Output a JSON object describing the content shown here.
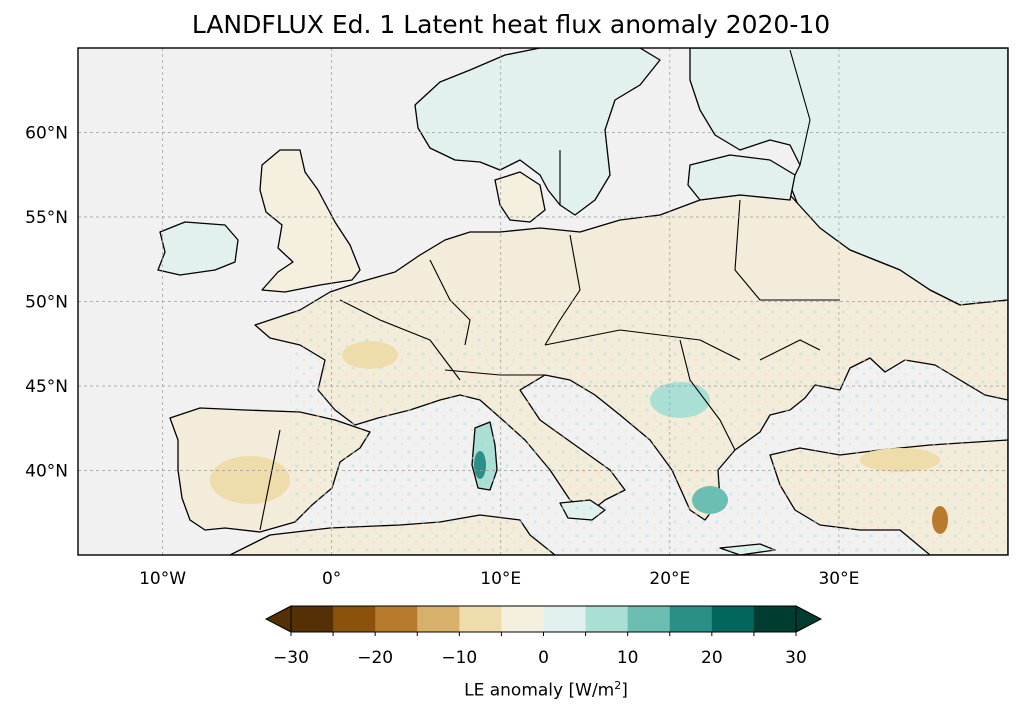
{
  "title": "LANDFLUX Ed. 1 Latent heat flux anomaly 2020-10",
  "map": {
    "projection": "PlateCarree",
    "lon_range": [
      -15,
      40
    ],
    "lat_range": [
      35,
      65
    ],
    "gridlines": true,
    "lon_ticks": [
      {
        "value": -10,
        "label": "10°W"
      },
      {
        "value": 0,
        "label": "0°"
      },
      {
        "value": 10,
        "label": "10°E"
      },
      {
        "value": 20,
        "label": "20°E"
      },
      {
        "value": 30,
        "label": "30°E"
      }
    ],
    "lat_ticks": [
      {
        "value": 60,
        "label": "60°N"
      },
      {
        "value": 55,
        "label": "55°N"
      },
      {
        "value": 50,
        "label": "50°N"
      },
      {
        "value": 45,
        "label": "45°N"
      },
      {
        "value": 40,
        "label": "40°N"
      }
    ],
    "ocean_color": "#f1f1f1",
    "coastline_color": "#000000"
  },
  "colorbar": {
    "label_main": "LE anomaly [W/m",
    "label_sup": "2",
    "label_end": "]",
    "extend": "both",
    "boundaries": [
      -30,
      -25,
      -20,
      -15,
      -10,
      -5,
      0,
      5,
      10,
      15,
      20,
      25,
      30
    ],
    "colors": [
      "#553005",
      "#8c510a",
      "#b87a2c",
      "#d7b06c",
      "#eedcaa",
      "#f5efdf",
      "#e0f0ee",
      "#aadfd5",
      "#6bbeb1",
      "#2c8f87",
      "#01665e",
      "#003c30"
    ],
    "under_color": "#543005",
    "over_color": "#003c30",
    "tick_labels": [
      {
        "value": -30,
        "label": "−30"
      },
      {
        "value": -20,
        "label": "−20"
      },
      {
        "value": -10,
        "label": "−10"
      },
      {
        "value": 0,
        "label": "0"
      },
      {
        "value": 10,
        "label": "10"
      },
      {
        "value": 20,
        "label": "20"
      },
      {
        "value": 30,
        "label": "30"
      }
    ]
  }
}
